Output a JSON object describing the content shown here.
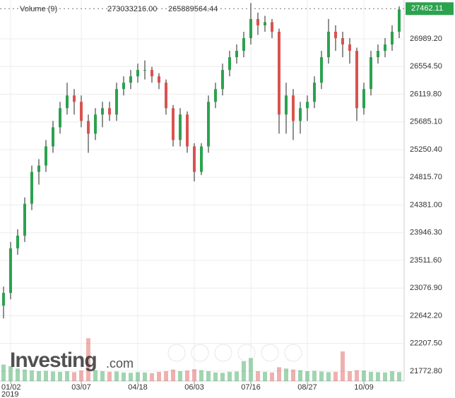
{
  "chart_data": {
    "type": "candlestick",
    "categories": [
      null,
      "01/02",
      null,
      null,
      null,
      null,
      null,
      null,
      null,
      null,
      null,
      "03/07",
      null,
      null,
      null,
      null,
      null,
      null,
      null,
      "04/18",
      null,
      null,
      null,
      null,
      null,
      null,
      null,
      "06/03",
      null,
      null,
      null,
      null,
      null,
      null,
      null,
      "07/16",
      null,
      null,
      null,
      null,
      null,
      null,
      null,
      "08/27",
      null,
      null,
      null,
      null,
      null,
      null,
      null,
      "10/09",
      null,
      null,
      null,
      null,
      null
    ],
    "year_label": "2019",
    "open": [
      22800,
      23000,
      23700,
      23900,
      24400,
      24900,
      25000,
      25300,
      25600,
      25900,
      26100,
      26000,
      25700,
      25500,
      25800,
      25900,
      25800,
      26200,
      26300,
      26400,
      26500,
      26500,
      26400,
      26300,
      25900,
      25400,
      25800,
      25300,
      24900,
      25300,
      26000,
      26200,
      26500,
      26700,
      26800,
      27000,
      27300,
      27200,
      27250,
      27100,
      25800,
      26100,
      25700,
      25900,
      26000,
      26300,
      26700,
      27100,
      27000,
      26900,
      26800,
      25900,
      26200,
      26700,
      26800,
      26900,
      27100
    ],
    "high": [
      23100,
      23800,
      24000,
      24500,
      25000,
      25100,
      25400,
      25700,
      26000,
      26300,
      26200,
      26100,
      25800,
      25900,
      26000,
      26000,
      26300,
      26400,
      26500,
      26600,
      26650,
      26550,
      26450,
      26350,
      25950,
      25900,
      25850,
      25350,
      25350,
      26100,
      26300,
      26600,
      26800,
      26900,
      27100,
      27550,
      27400,
      27350,
      27300,
      27150,
      26300,
      26200,
      26000,
      26100,
      26400,
      26800,
      27300,
      27200,
      27100,
      27000,
      26850,
      26300,
      26800,
      26900,
      27000,
      27200,
      27500
    ],
    "low": [
      22600,
      22900,
      23600,
      23800,
      24300,
      24700,
      24900,
      25200,
      25500,
      25800,
      25800,
      25600,
      25200,
      25400,
      25600,
      25700,
      25700,
      26100,
      26200,
      26300,
      26350,
      26300,
      26200,
      25800,
      25300,
      25300,
      25200,
      24750,
      24850,
      25200,
      25900,
      26100,
      26400,
      26600,
      26700,
      26900,
      27050,
      27100,
      27000,
      25500,
      25500,
      25400,
      25500,
      25700,
      25900,
      26200,
      26600,
      26800,
      26700,
      26600,
      25700,
      25800,
      26100,
      26600,
      26700,
      26800,
      27000
    ],
    "close": [
      23000,
      23700,
      23900,
      24400,
      24900,
      25000,
      25300,
      25600,
      25900,
      26100,
      26000,
      25700,
      25500,
      25800,
      25900,
      25800,
      26200,
      26300,
      26400,
      26500,
      26500,
      26400,
      26300,
      25900,
      25400,
      25800,
      25300,
      24900,
      25300,
      26000,
      26200,
      26500,
      26700,
      26800,
      27000,
      27300,
      27200,
      27250,
      27100,
      25800,
      26100,
      25700,
      25900,
      26000,
      26300,
      26700,
      27100,
      27000,
      26900,
      26800,
      25900,
      26200,
      26700,
      26800,
      26900,
      27100,
      27450
    ],
    "volume": [
      500000000,
      450000000,
      380000000,
      350000000,
      320000000,
      300000000,
      310000000,
      290000000,
      280000000,
      300000000,
      270000000,
      320000000,
      1300000000,
      330000000,
      300000000,
      280000000,
      290000000,
      260000000,
      250000000,
      270000000,
      260000000,
      240000000,
      280000000,
      300000000,
      350000000,
      300000000,
      320000000,
      360000000,
      330000000,
      300000000,
      260000000,
      250000000,
      280000000,
      290000000,
      600000000,
      700000000,
      300000000,
      280000000,
      260000000,
      420000000,
      380000000,
      350000000,
      330000000,
      300000000,
      310000000,
      290000000,
      270000000,
      280000000,
      900000000,
      300000000,
      330000000,
      320000000,
      280000000,
      270000000,
      260000000,
      300000000,
      273033216
    ],
    "up_color": "#2ca24f",
    "down_color": "#d9534f",
    "volume_label": "Volume (9)",
    "volume_value": {
      "value": 273033216,
      "label": "273033216.00"
    },
    "volume_avg": {
      "value": 265889564.44,
      "label": "265889564.44"
    },
    "last_price": {
      "value": 27462.11,
      "label": "27462.11"
    },
    "logo": "Investing",
    "logo_suffix": ".com",
    "ylim": [
      21617,
      27598
    ],
    "y2lim": [
      0,
      1500000000
    ],
    "yticks": [
      {
        "value": 21772.8,
        "label": "21772.80"
      },
      {
        "value": 22207.5,
        "label": "22207.50"
      },
      {
        "value": 22642.2,
        "label": "22642.20"
      },
      {
        "value": 23076.9,
        "label": "23076.90"
      },
      {
        "value": 23511.6,
        "label": "23511.60"
      },
      {
        "value": 23946.3,
        "label": "23946.30"
      },
      {
        "value": 24381,
        "label": "24381.00"
      },
      {
        "value": 24815.7,
        "label": "24815.70"
      },
      {
        "value": 25250.4,
        "label": "25250.40"
      },
      {
        "value": 25685.1,
        "label": "25685.10"
      },
      {
        "value": 26119.8,
        "label": "26119.80"
      },
      {
        "value": 26554.5,
        "label": "26554.50"
      },
      {
        "value": 26989.2,
        "label": "26989.20"
      }
    ],
    "grid": true
  }
}
